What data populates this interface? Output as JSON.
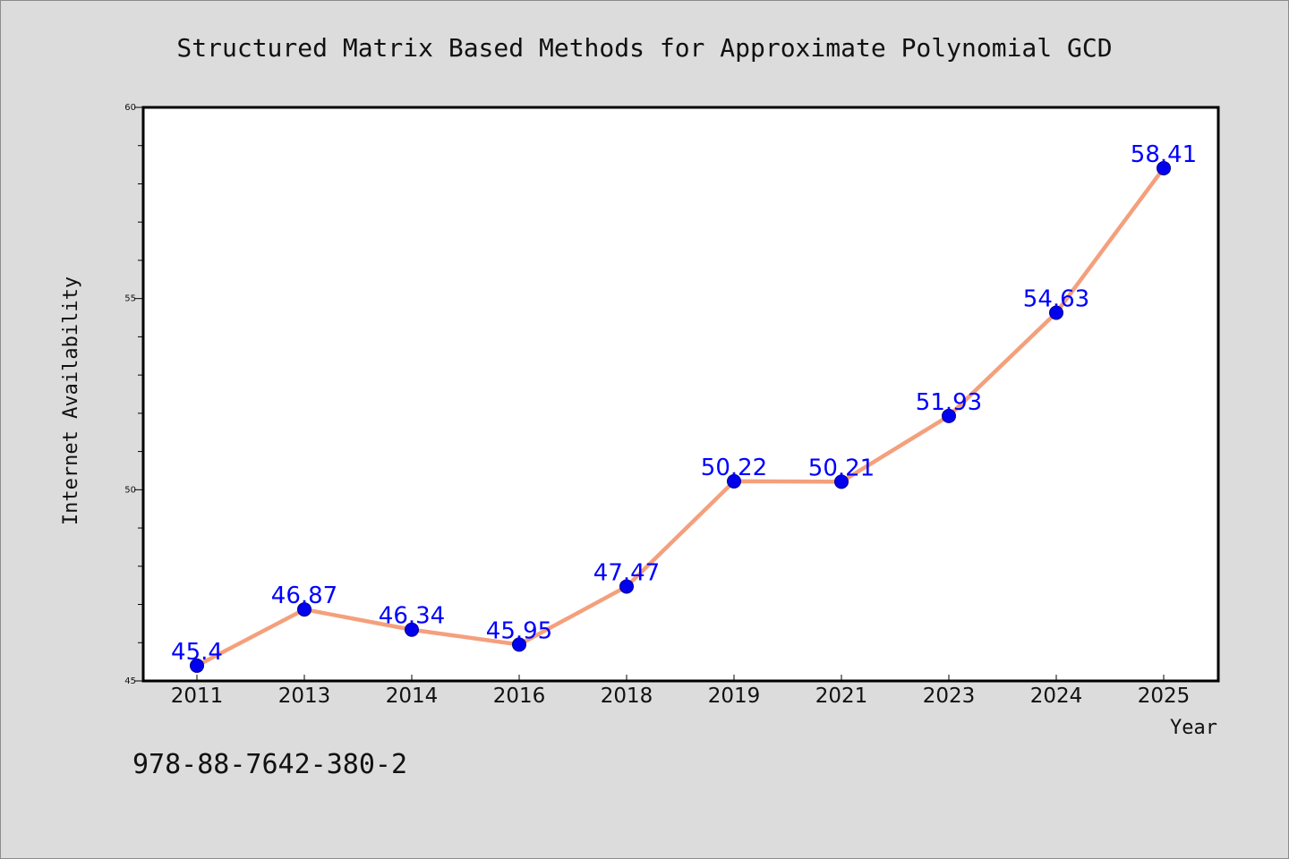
{
  "chart_data": {
    "type": "line",
    "title": "Structured Matrix Based Methods for Approximate Polynomial GCD",
    "xlabel": "Year",
    "ylabel": "Internet Availability",
    "categories": [
      "2011",
      "2013",
      "2014",
      "2016",
      "2018",
      "2019",
      "2021",
      "2023",
      "2024",
      "2025"
    ],
    "series": [
      {
        "values": [
          45.4,
          46.87,
          46.34,
          45.95,
          47.47,
          50.22,
          50.21,
          51.93,
          54.63,
          58.41
        ],
        "labels": [
          "45.4",
          "46.87",
          "46.34",
          "45.95",
          "47.47",
          "50.22",
          "50.21",
          "51.93",
          "54.63",
          "58.41"
        ]
      }
    ],
    "ylim": [
      45,
      60
    ],
    "yticks": [
      "45",
      "50",
      "55",
      "60"
    ],
    "grid": false,
    "legend": "none",
    "colors": {
      "line": "#f4a07c",
      "marker": "#0000ee",
      "label": "#0000ff",
      "background": "#dcdcdc",
      "plot_background": "#ffffff"
    }
  },
  "footer": {
    "isbn": "978-88-7642-380-2"
  }
}
